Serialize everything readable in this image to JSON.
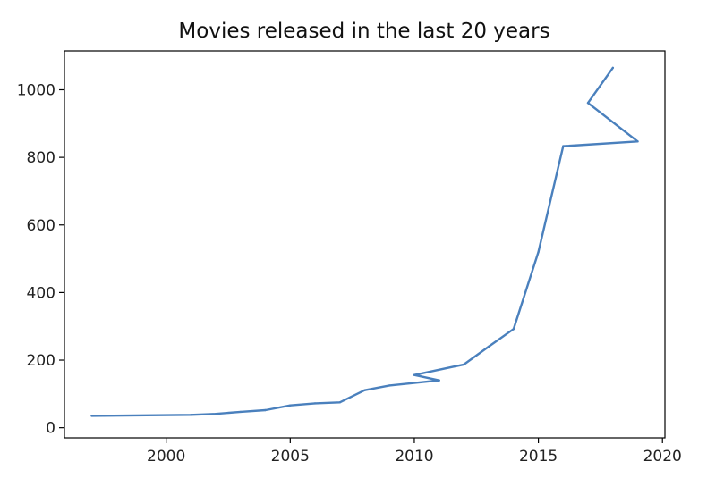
{
  "chart_data": {
    "type": "line",
    "title": "Movies released in the last 20 years",
    "xlabel": "",
    "ylabel": "",
    "xlim": [
      1995.9,
      2020.1
    ],
    "ylim": [
      -30,
      1115
    ],
    "xticks": [
      2000,
      2005,
      2010,
      2015,
      2020
    ],
    "yticks": [
      0,
      200,
      400,
      600,
      800,
      1000
    ],
    "grid": false,
    "legend": "none",
    "colors": {
      "line": "#4a80bd"
    },
    "series": [
      {
        "x": [
          1997,
          2001,
          2002,
          2003,
          2004,
          2005,
          2006,
          2007,
          2008,
          2009,
          2011,
          2010,
          2012,
          2013,
          2014,
          2015,
          2016,
          2019,
          2017,
          2018
        ],
        "y": [
          35,
          38,
          41,
          47,
          52,
          66,
          72,
          75,
          111,
          125,
          140,
          156,
          187,
          240,
          292,
          520,
          833,
          847,
          961,
          1065
        ]
      }
    ]
  }
}
